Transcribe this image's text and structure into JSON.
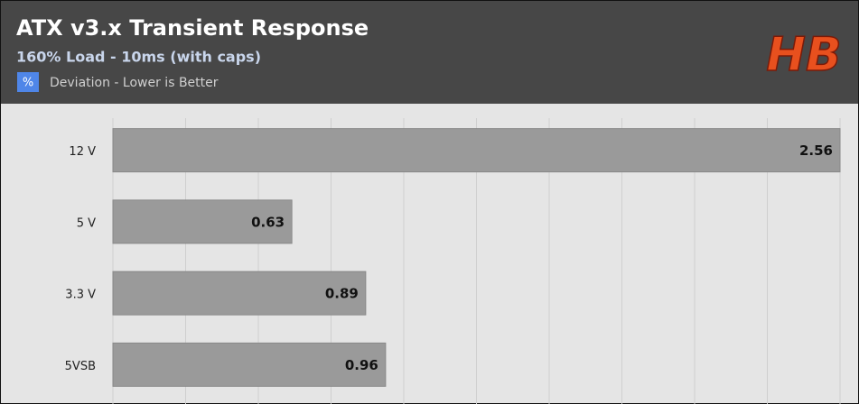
{
  "chart_data": {
    "type": "hbar",
    "title": "ATX v3.x Transient Response",
    "subtitle": "160% Load - 10ms (with caps)",
    "logo": "HB",
    "legend": {
      "icon": "%",
      "label": "Deviation - Lower is Better"
    },
    "categories": [
      "12 V",
      "5 V",
      "3.3 V",
      "5VSB"
    ],
    "values": [
      2.56,
      0.63,
      0.89,
      0.96
    ],
    "color": "#9a9a9a",
    "xlim": [
      0,
      2.56
    ],
    "xticks": [
      0,
      0.256,
      0.512,
      0.768,
      1.024,
      1.28,
      1.536,
      1.792,
      2.048,
      2.304,
      2.56
    ],
    "grid": true
  }
}
